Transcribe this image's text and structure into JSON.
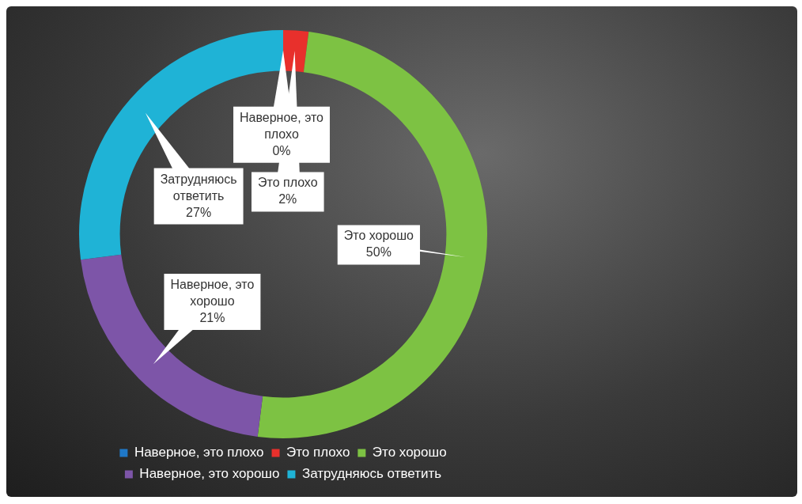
{
  "chart_data": {
    "type": "donut",
    "categories": [
      "Наверное, это плохо",
      "Это плохо",
      "Это хорошо",
      "Наверное, это хорошо",
      "Затрудняюсь ответить"
    ],
    "values": [
      0,
      2,
      50,
      21,
      27
    ],
    "colors": [
      "#1f78c8",
      "#e8302c",
      "#7dc243",
      "#7d55a8",
      "#1fb3d6"
    ],
    "value_labels": [
      "0%",
      "2%",
      "50%",
      "21%",
      "27%"
    ],
    "legend": "bottom"
  }
}
